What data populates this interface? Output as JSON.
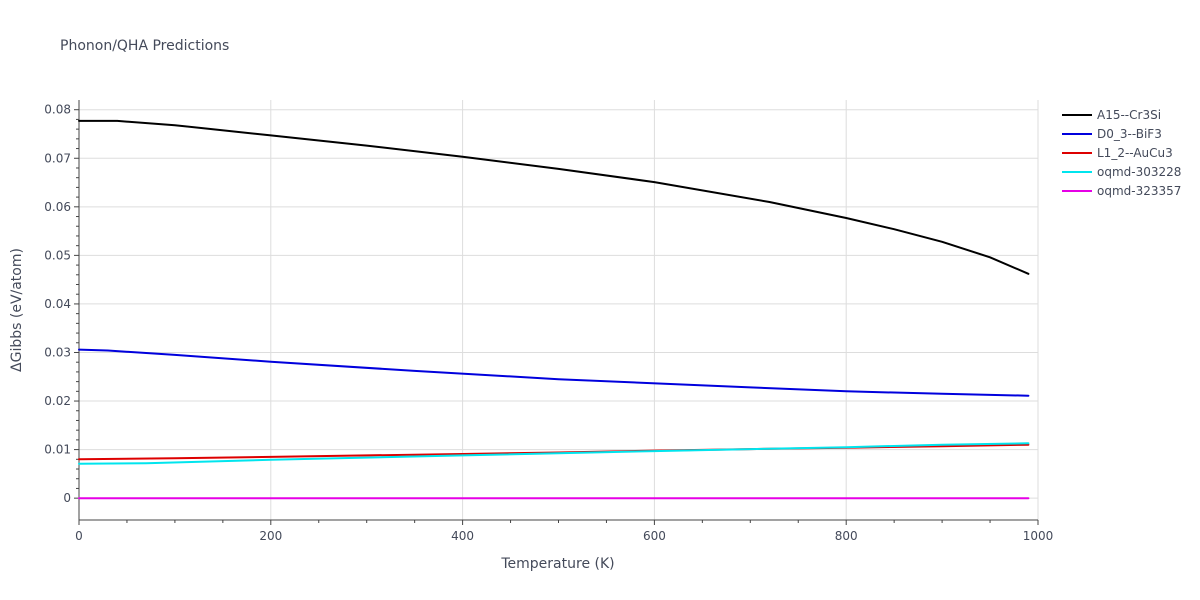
{
  "chart_data": {
    "type": "line",
    "title": "Phonon/QHA Predictions",
    "xlabel": "Temperature (K)",
    "ylabel": "ΔGibbs (eV/atom)",
    "xlim": [
      0,
      1000
    ],
    "ylim": [
      -0.0045,
      0.082
    ],
    "xticks": [
      0,
      200,
      400,
      600,
      800,
      1000
    ],
    "xtick_labels": [
      "0",
      "200",
      "400",
      "600",
      "800",
      "1000"
    ],
    "yticks": [
      0,
      0.01,
      0.02,
      0.03,
      0.04,
      0.05,
      0.06,
      0.07,
      0.08
    ],
    "ytick_labels": [
      "0",
      "0.01",
      "0.02",
      "0.03",
      "0.04",
      "0.05",
      "0.06",
      "0.07",
      "0.08"
    ],
    "grid": true,
    "legend_position": "top-right",
    "series": [
      {
        "name": "A15--Cr3Si",
        "color": "#000000",
        "x": [
          0,
          40,
          100,
          200,
          300,
          400,
          500,
          600,
          720,
          800,
          850,
          900,
          950,
          990
        ],
        "y": [
          0.0777,
          0.0777,
          0.0768,
          0.0747,
          0.0726,
          0.0703,
          0.0678,
          0.0651,
          0.061,
          0.0577,
          0.0554,
          0.0528,
          0.0496,
          0.0462
        ]
      },
      {
        "name": "D0_3--BiF3",
        "color": "#0000dd",
        "x": [
          0,
          30,
          100,
          200,
          350,
          500,
          700,
          800,
          900,
          990
        ],
        "y": [
          0.0306,
          0.0304,
          0.0295,
          0.0281,
          0.0262,
          0.0245,
          0.0228,
          0.022,
          0.0215,
          0.0211
        ]
      },
      {
        "name": "L1_2--AuCu3",
        "color": "#dd0000",
        "x": [
          0,
          100,
          200,
          300,
          400,
          500,
          600,
          700,
          800,
          900,
          990
        ],
        "y": [
          0.008,
          0.0082,
          0.0085,
          0.0088,
          0.0091,
          0.0094,
          0.0098,
          0.0101,
          0.0104,
          0.0107,
          0.011
        ]
      },
      {
        "name": "oqmd-303228",
        "color": "#00e5ee",
        "x": [
          0,
          70,
          200,
          400,
          600,
          800,
          900,
          990
        ],
        "y": [
          0.0071,
          0.0072,
          0.0079,
          0.0088,
          0.0097,
          0.0105,
          0.011,
          0.0113
        ]
      },
      {
        "name": "oqmd-323357",
        "color": "#e600e6",
        "x": [
          0,
          990
        ],
        "y": [
          0.0,
          0.0
        ]
      }
    ]
  }
}
